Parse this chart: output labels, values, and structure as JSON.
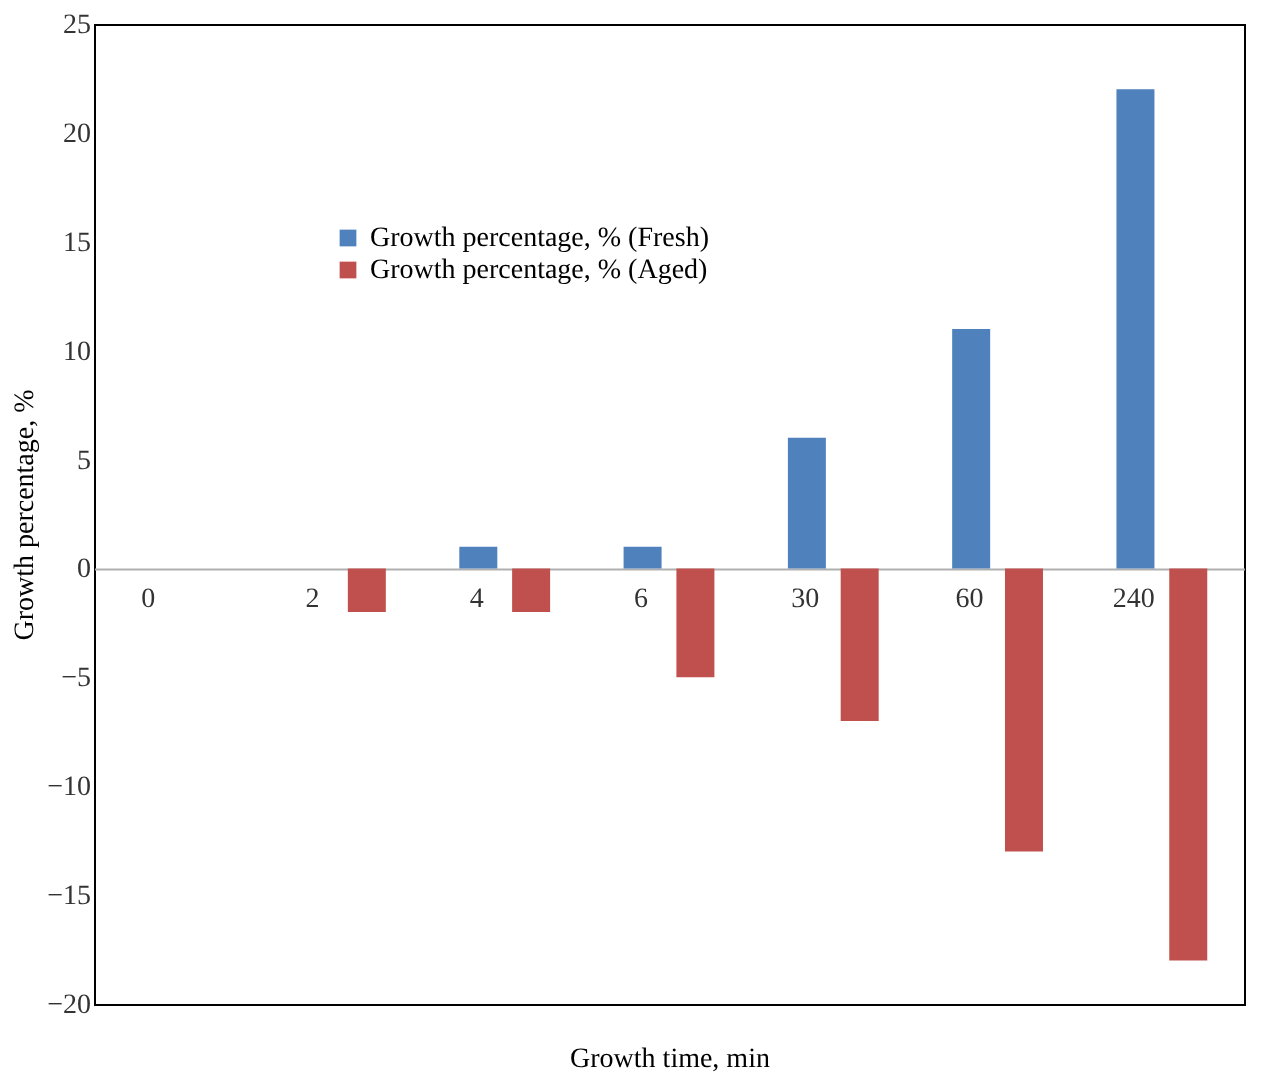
{
  "chart_data": {
    "type": "bar",
    "xlabel": "Growth time, min",
    "ylabel": "Growth percentage, %",
    "categories": [
      "0",
      "2",
      "4",
      "6",
      "30",
      "60",
      "240"
    ],
    "series": [
      {
        "name": "Growth percentage, % (Fresh)",
        "color": "#4f81bd",
        "values": [
          0,
          0,
          1,
          1,
          6,
          11,
          22
        ]
      },
      {
        "name": "Growth percentage, % (Aged)",
        "color": "#c0504d",
        "values": [
          0,
          -2,
          -2,
          -5,
          -7,
          -13,
          -18
        ]
      }
    ],
    "ylim": [
      -20,
      25
    ],
    "yticks": [
      -20,
      -15,
      -10,
      -5,
      0,
      5,
      10,
      15,
      20,
      25
    ],
    "grid": false,
    "legend": "top left"
  }
}
